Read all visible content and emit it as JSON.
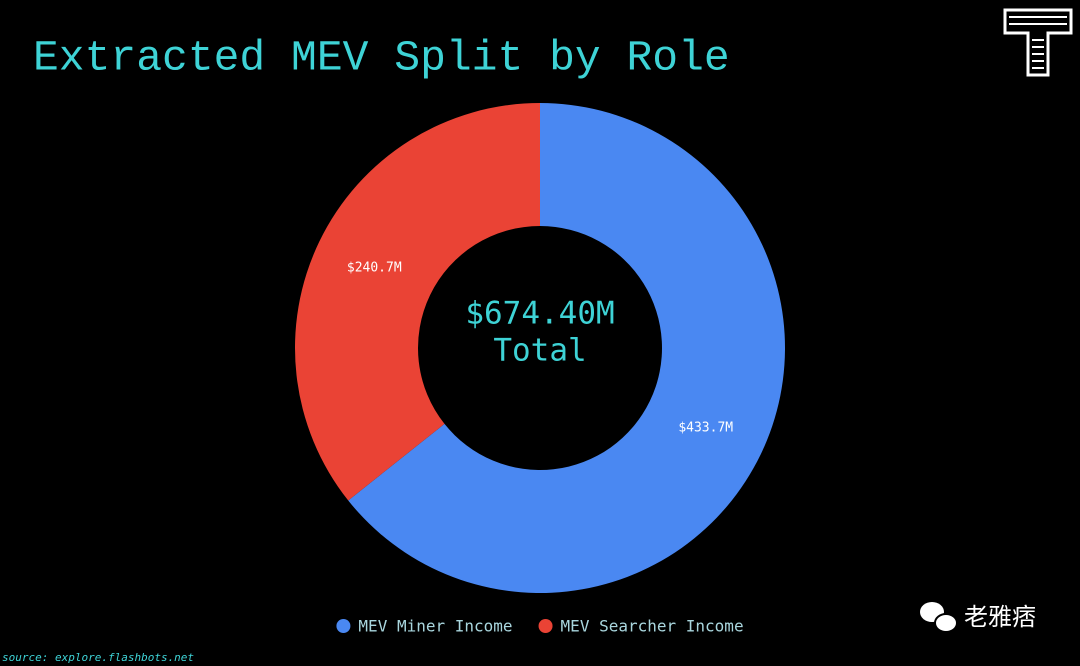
{
  "chart_data": {
    "type": "donut",
    "title": "Extracted MEV Split by Role",
    "categories": [
      "MEV Miner Income",
      "MEV Searcher Income"
    ],
    "values": [
      433.7,
      240.7
    ],
    "value_labels": [
      "$433.7M",
      "$240.7M"
    ],
    "colors": [
      "#4a88f2",
      "#ea4335"
    ],
    "center_text": "$674.40M",
    "center_subtext": "Total",
    "legend": "bottom",
    "source": "source: explore.flashbots.net"
  },
  "watermark": "老雅痞"
}
